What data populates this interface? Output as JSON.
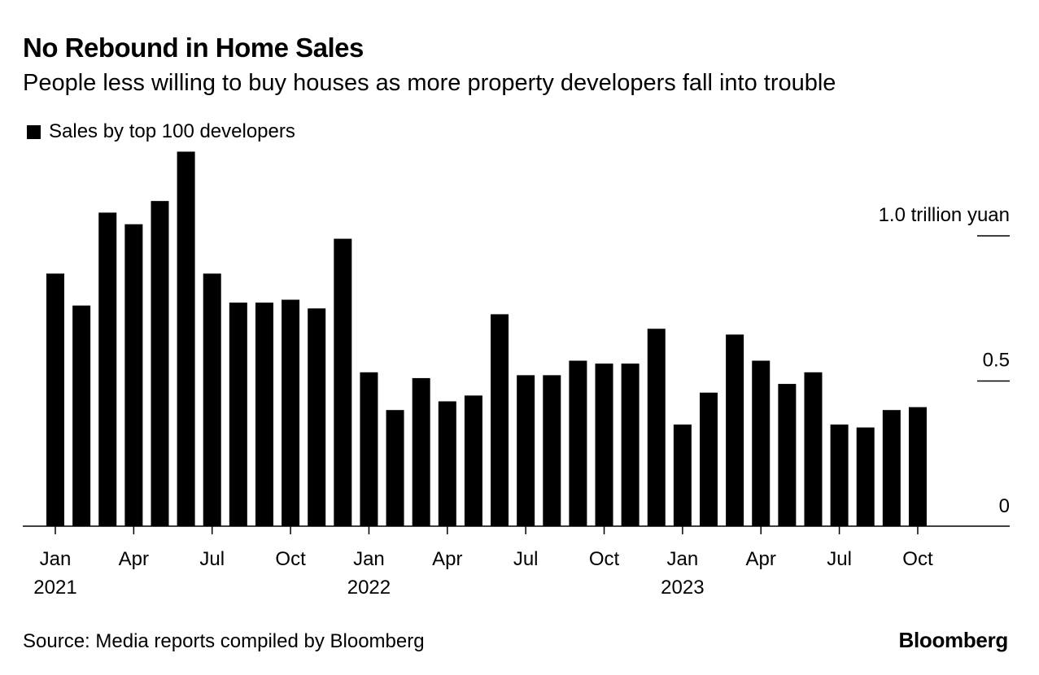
{
  "chart_data": {
    "type": "bar",
    "title": "No Rebound in Home Sales",
    "subtitle": "People less willing to buy houses as more property developers fall into trouble",
    "legend": [
      {
        "name": "Sales by top 100 developers",
        "color": "#000000"
      }
    ],
    "unit_label": "1.0 trillion yuan",
    "ylim": [
      0,
      1.3
    ],
    "y_ticks": [
      {
        "value": 1.0,
        "label": "1.0 trillion yuan"
      },
      {
        "value": 0.5,
        "label": "0.5"
      },
      {
        "value": 0,
        "label": "0"
      }
    ],
    "categories": [
      "2021-01",
      "2021-02",
      "2021-03",
      "2021-04",
      "2021-05",
      "2021-06",
      "2021-07",
      "2021-08",
      "2021-09",
      "2021-10",
      "2021-11",
      "2021-12",
      "2022-01",
      "2022-02",
      "2022-03",
      "2022-04",
      "2022-05",
      "2022-06",
      "2022-07",
      "2022-08",
      "2022-09",
      "2022-10",
      "2022-11",
      "2022-12",
      "2023-01",
      "2023-02",
      "2023-03",
      "2023-04",
      "2023-05",
      "2023-06",
      "2023-07",
      "2023-08",
      "2023-09",
      "2023-10"
    ],
    "series": [
      {
        "name": "Sales by top 100 developers",
        "values": [
          0.87,
          0.76,
          1.08,
          1.04,
          1.12,
          1.29,
          0.87,
          0.77,
          0.77,
          0.78,
          0.75,
          0.99,
          0.53,
          0.4,
          0.51,
          0.43,
          0.45,
          0.73,
          0.52,
          0.52,
          0.57,
          0.56,
          0.56,
          0.68,
          0.35,
          0.46,
          0.66,
          0.57,
          0.49,
          0.53,
          0.35,
          0.34,
          0.4,
          0.41
        ]
      }
    ],
    "x_tick_labels": [
      {
        "index": 0,
        "month": "Jan",
        "year": "2021"
      },
      {
        "index": 3,
        "month": "Apr",
        "year": ""
      },
      {
        "index": 6,
        "month": "Jul",
        "year": ""
      },
      {
        "index": 9,
        "month": "Oct",
        "year": ""
      },
      {
        "index": 12,
        "month": "Jan",
        "year": "2022"
      },
      {
        "index": 15,
        "month": "Apr",
        "year": ""
      },
      {
        "index": 18,
        "month": "Jul",
        "year": ""
      },
      {
        "index": 21,
        "month": "Oct",
        "year": ""
      },
      {
        "index": 24,
        "month": "Jan",
        "year": "2023"
      },
      {
        "index": 27,
        "month": "Apr",
        "year": ""
      },
      {
        "index": 30,
        "month": "Jul",
        "year": ""
      },
      {
        "index": 33,
        "month": "Oct",
        "year": ""
      }
    ],
    "xlabel": "",
    "ylabel": ""
  },
  "source": "Source: Media reports compiled by Bloomberg",
  "brand": "Bloomberg"
}
